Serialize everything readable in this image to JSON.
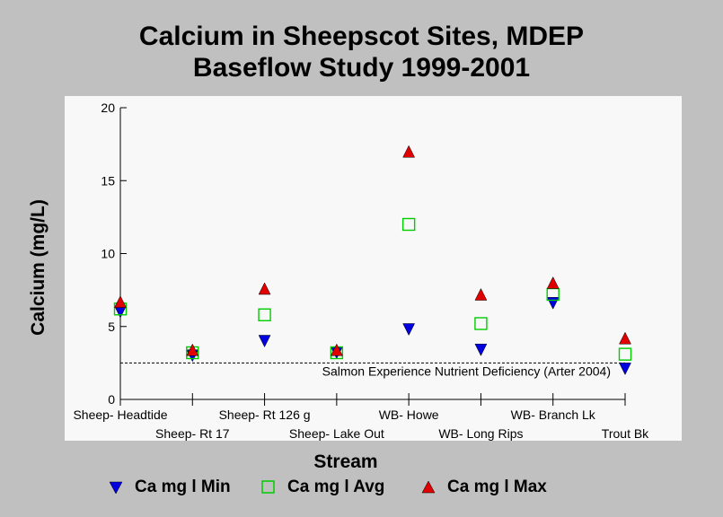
{
  "chart_data": {
    "type": "scatter",
    "title_line1": "Calcium in Sheepscot Sites, MDEP",
    "title_line2": "Baseflow Study 1999-2001",
    "xlabel": "Stream",
    "ylabel": "Calcium (mg/L)",
    "ylim": [
      0,
      20
    ],
    "yticks": [
      0,
      5,
      10,
      15,
      20
    ],
    "categories": [
      "Sheep- Headtide",
      "Sheep- Rt 17",
      "Sheep- Rt 126 g",
      "Sheep- Lake Out",
      "WB- Howe",
      "WB- Long Rips",
      "WB- Branch Lk",
      "Trout Bk"
    ],
    "series": [
      {
        "name": "Ca mg l Min",
        "marker": "triangle-down",
        "color": "#0000e0",
        "values": [
          6.0,
          3.0,
          4.0,
          3.2,
          4.8,
          3.4,
          6.6,
          2.1
        ]
      },
      {
        "name": "Ca mg l Avg",
        "marker": "square-open",
        "color": "#00cc00",
        "values": [
          6.2,
          3.2,
          5.8,
          3.2,
          12.0,
          5.2,
          7.2,
          3.1
        ]
      },
      {
        "name": "Ca mg l Max",
        "marker": "triangle-up",
        "color": "#e00000",
        "values": [
          6.7,
          3.4,
          7.6,
          3.4,
          17.0,
          7.2,
          8.0,
          4.2
        ]
      }
    ],
    "reference_line": {
      "value": 2.5,
      "label": "Salmon Experience Nutrient Deficiency (Arter 2004)"
    },
    "grid": false,
    "legend_position": "bottom"
  }
}
